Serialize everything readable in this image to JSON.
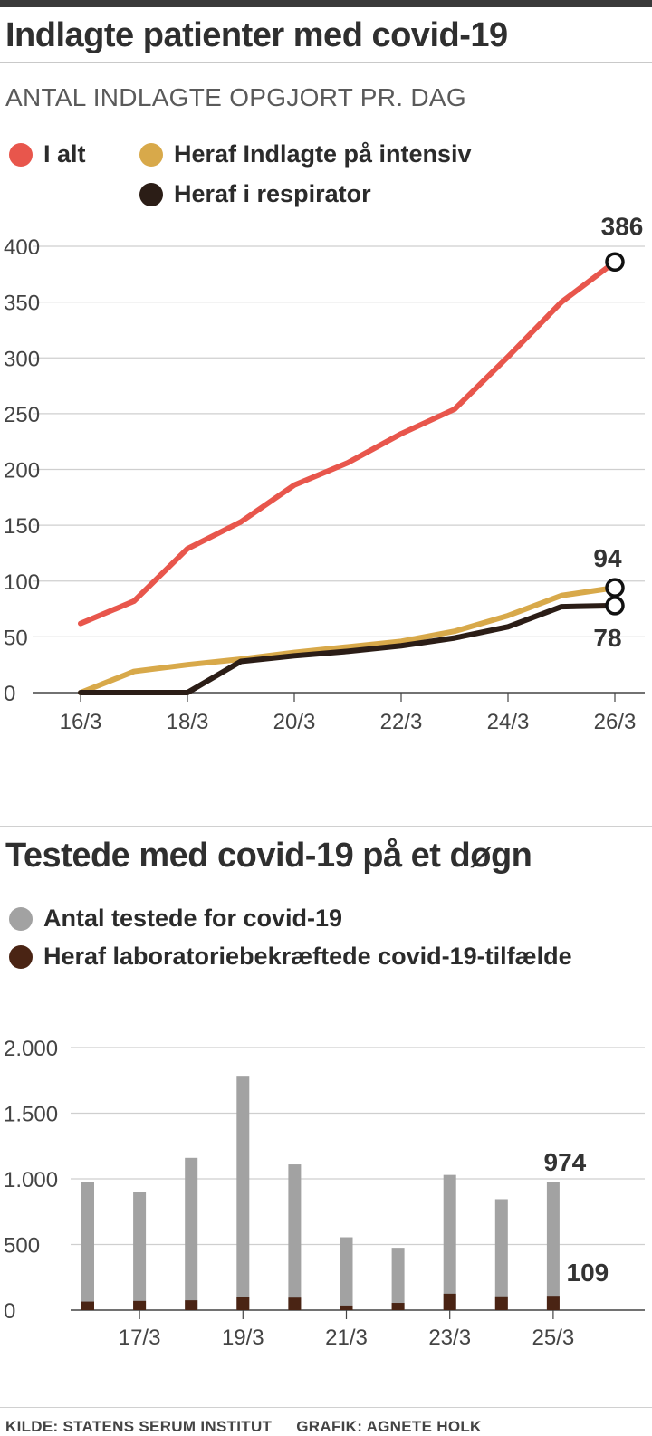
{
  "chart_data": [
    {
      "type": "line",
      "title": "Indlagte patienter med covid-19",
      "subtitle": "ANTAL INDLAGTE OPGJORT PR. DAG",
      "categories": [
        "16/3",
        "17/3",
        "18/3",
        "19/3",
        "20/3",
        "21/3",
        "22/3",
        "23/3",
        "24/3",
        "25/3",
        "26/3"
      ],
      "x_tick_labels": [
        "16/3",
        "18/3",
        "20/3",
        "22/3",
        "24/3",
        "26/3"
      ],
      "y_ticks": [
        0,
        50,
        100,
        150,
        200,
        250,
        300,
        350,
        400
      ],
      "ylim": [
        0,
        400
      ],
      "grid": true,
      "legend_position": "top-left",
      "series": [
        {
          "name": "I alt",
          "color": "#e8564c",
          "values": [
            62,
            82,
            129,
            153,
            186,
            206,
            232,
            254,
            301,
            350,
            386
          ]
        },
        {
          "name": "Heraf Indlagte på intensiv",
          "color": "#d8a94a",
          "values": [
            0,
            19,
            25,
            30,
            36,
            41,
            46,
            55,
            69,
            87,
            94
          ]
        },
        {
          "name": "Heraf i respirator",
          "color": "#2b1d16",
          "values": [
            0,
            0,
            0,
            28,
            33,
            37,
            42,
            49,
            59,
            77,
            78
          ]
        }
      ],
      "annotations": [
        {
          "series": 0,
          "index": 10,
          "text": "386"
        },
        {
          "series": 1,
          "index": 10,
          "text": "94"
        },
        {
          "series": 2,
          "index": 10,
          "text": "78"
        }
      ]
    },
    {
      "type": "bar",
      "title": "Testede med covid-19 på et døgn",
      "categories": [
        "16/3",
        "17/3",
        "18/3",
        "19/3",
        "20/3",
        "21/3",
        "22/3",
        "23/3",
        "24/3",
        "25/3"
      ],
      "x_tick_labels": [
        "17/3",
        "19/3",
        "21/3",
        "23/3",
        "25/3"
      ],
      "y_tick_labels": [
        "0",
        "500",
        "1.000",
        "1.500",
        "2.000"
      ],
      "y_ticks": [
        0,
        500,
        1000,
        1500,
        2000
      ],
      "ylim": [
        0,
        2000
      ],
      "grid": true,
      "legend_position": "top-left",
      "series": [
        {
          "name": "Antal testede for covid-19",
          "color": "#a2a2a2",
          "values": [
            975,
            900,
            1160,
            1785,
            1110,
            555,
            475,
            1030,
            845,
            974
          ]
        },
        {
          "name": "Heraf laboratoriebekræftede covid-19-tilfælde",
          "color": "#4a2414",
          "values": [
            65,
            70,
            75,
            100,
            95,
            35,
            55,
            125,
            105,
            109
          ]
        }
      ],
      "annotations": [
        {
          "series": 0,
          "index": 9,
          "text": "974"
        },
        {
          "series": 1,
          "index": 9,
          "text": "109"
        }
      ]
    }
  ],
  "footer": {
    "source": "KILDE: STATENS SERUM INSTITUT",
    "credit": "GRAFIK: AGNETE HOLK"
  }
}
